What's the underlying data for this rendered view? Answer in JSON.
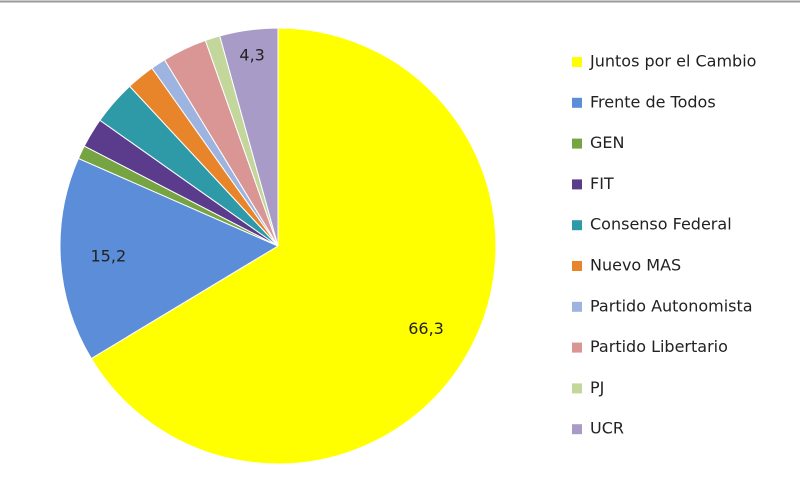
{
  "chart_data": {
    "type": "pie",
    "categories": [
      "Juntos por el Cambio",
      "Frente de Todos",
      "GEN",
      "FIT",
      "Consenso Federal",
      "Nuevo MAS",
      "Partido Autonomista",
      "Partido Libertario",
      "PJ",
      "UCR"
    ],
    "values": [
      66.3,
      15.2,
      1.0,
      2.2,
      3.3,
      2.1,
      1.1,
      3.3,
      1.1,
      4.3
    ],
    "value_labels": [
      "66,3",
      "15,2",
      null,
      null,
      null,
      null,
      null,
      null,
      null,
      "4,3"
    ],
    "colors": [
      "#ffff00",
      "#5b8dd9",
      "#77a443",
      "#5b3b8c",
      "#2e9aa8",
      "#e8842a",
      "#9db4e0",
      "#d99694",
      "#c3d69b",
      "#a99bc8"
    ],
    "legend": "right"
  }
}
